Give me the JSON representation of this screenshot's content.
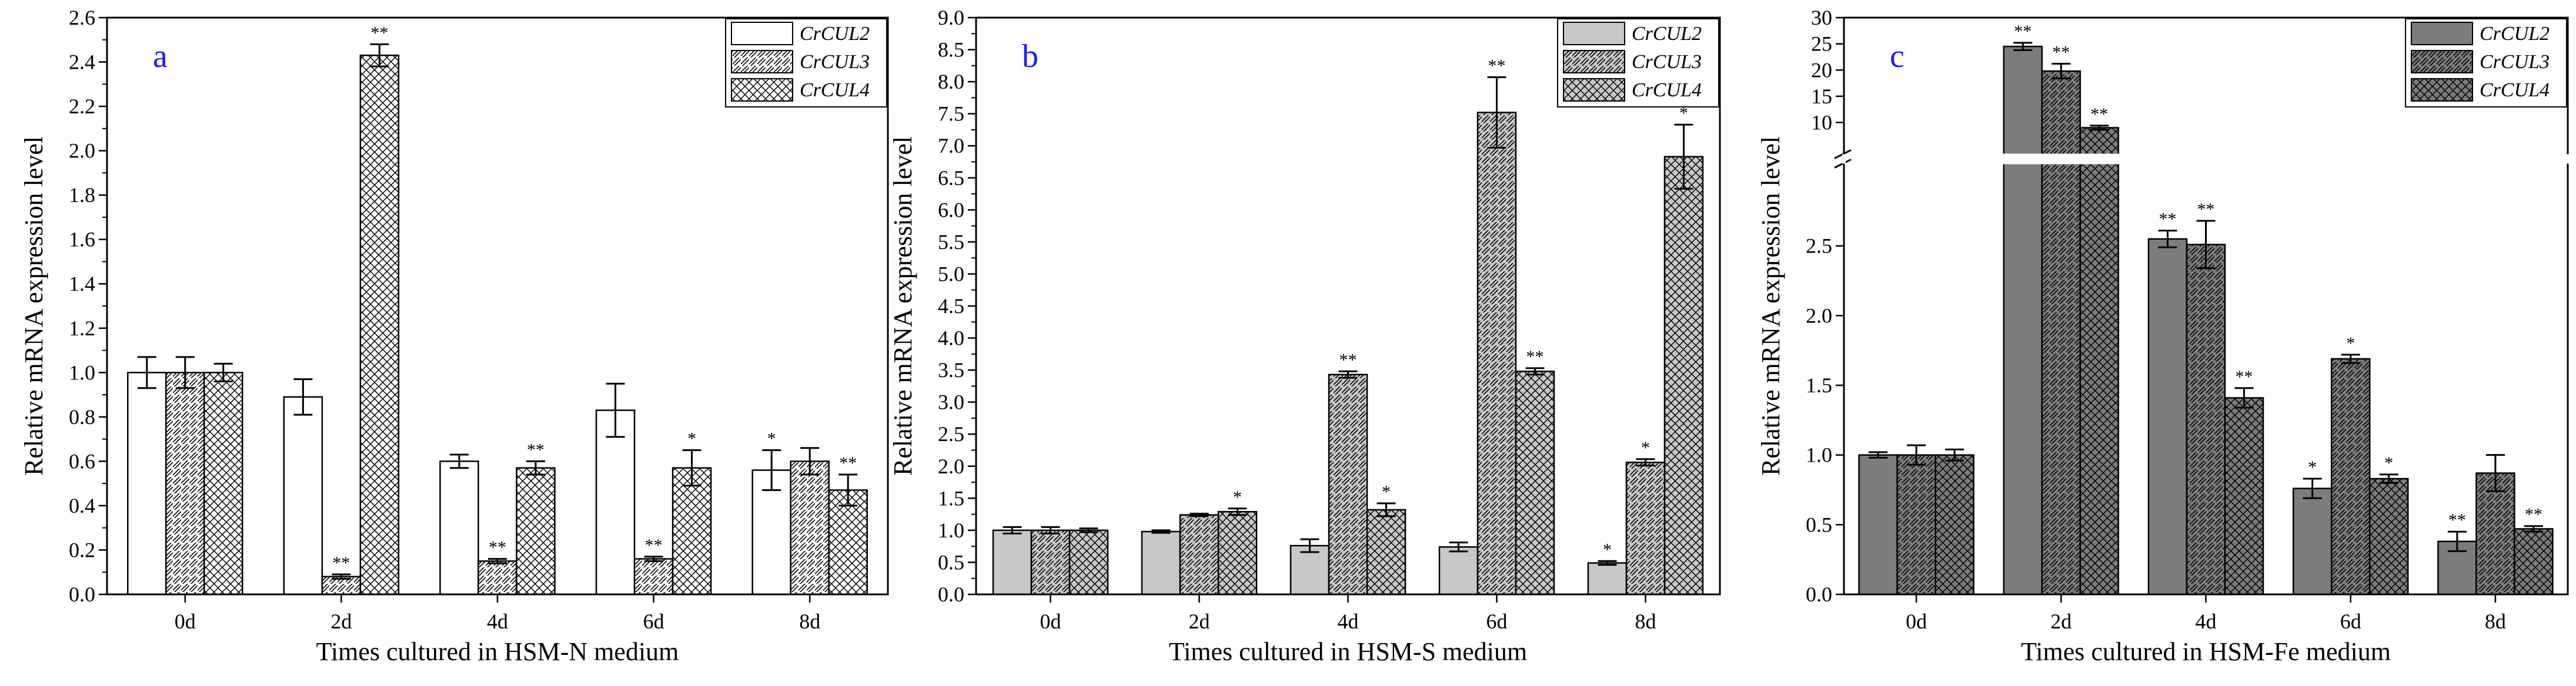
{
  "chart_data": [
    {
      "type": "bar",
      "panel_letter": "a",
      "xlabel": "Times cultured in HSM-N medium",
      "ylabel": "Relative mRNA expression level",
      "categories": [
        "0d",
        "2d",
        "4d",
        "6d",
        "8d"
      ],
      "ylim": [
        0,
        2.6
      ],
      "yticks": [
        "0.0",
        "0.2",
        "0.4",
        "0.6",
        "0.8",
        "1.0",
        "1.2",
        "1.4",
        "1.6",
        "1.8",
        "2.0",
        "2.2",
        "2.4",
        "2.6"
      ],
      "legend_position": "top-right",
      "series": [
        {
          "name": "CrCUL2",
          "values": [
            1.0,
            0.89,
            0.6,
            0.83,
            0.56
          ],
          "errors": [
            0.07,
            0.08,
            0.03,
            0.12,
            0.09
          ],
          "sig": [
            "",
            "",
            "",
            "",
            "*"
          ]
        },
        {
          "name": "CrCUL3",
          "values": [
            1.0,
            0.08,
            0.15,
            0.16,
            0.6
          ],
          "errors": [
            0.07,
            0.01,
            0.01,
            0.01,
            0.06
          ],
          "sig": [
            "",
            "**",
            "**",
            "**",
            ""
          ]
        },
        {
          "name": "CrCUL4",
          "values": [
            1.0,
            2.43,
            0.57,
            0.57,
            0.47
          ],
          "errors": [
            0.04,
            0.05,
            0.03,
            0.08,
            0.07
          ],
          "sig": [
            "",
            "**",
            "**",
            "*",
            "**"
          ]
        }
      ]
    },
    {
      "type": "bar",
      "panel_letter": "b",
      "xlabel": "Times cultured in HSM-S medium",
      "ylabel": "Relative mRNA expression level",
      "categories": [
        "0d",
        "2d",
        "4d",
        "6d",
        "8d"
      ],
      "ylim": [
        0,
        9.0
      ],
      "yticks": [
        "0.0",
        "0.5",
        "1.0",
        "1.5",
        "2.0",
        "2.5",
        "3.0",
        "3.5",
        "4.0",
        "4.5",
        "5.0",
        "5.5",
        "6.0",
        "6.5",
        "7.0",
        "7.5",
        "8.0",
        "8.5",
        "9.0"
      ],
      "legend_position": "top-right",
      "series": [
        {
          "name": "CrCUL2",
          "values": [
            1.0,
            0.98,
            0.76,
            0.74,
            0.49
          ],
          "errors": [
            0.05,
            0.02,
            0.1,
            0.07,
            0.03
          ],
          "sig": [
            "",
            "",
            "",
            "",
            "*"
          ]
        },
        {
          "name": "CrCUL3",
          "values": [
            1.0,
            1.24,
            3.43,
            7.52,
            2.06
          ],
          "errors": [
            0.05,
            0.02,
            0.05,
            0.55,
            0.05
          ],
          "sig": [
            "",
            "",
            "**",
            "**",
            "*"
          ]
        },
        {
          "name": "CrCUL4",
          "values": [
            1.0,
            1.29,
            1.32,
            3.48,
            6.83
          ],
          "errors": [
            0.03,
            0.05,
            0.1,
            0.05,
            0.5
          ],
          "sig": [
            "",
            "*",
            "*",
            "**",
            "*"
          ]
        }
      ]
    },
    {
      "type": "bar",
      "panel_letter": "c",
      "xlabel": "Times cultured in HSM-Fe medium",
      "ylabel": "Relative mRNA expression level",
      "categories": [
        "0d",
        "2d",
        "4d",
        "6d",
        "8d"
      ],
      "axis_break": {
        "lower_ylim": [
          0,
          3.0
        ],
        "upper_ylim": [
          8,
          30
        ]
      },
      "yticks_lower": [
        "0.0",
        "0.5",
        "1.0",
        "1.5",
        "2.0",
        "2.5"
      ],
      "yticks_upper": [
        "10",
        "15",
        "20",
        "25",
        "30"
      ],
      "legend_position": "top-right",
      "series": [
        {
          "name": "CrCUL2",
          "values": [
            1.0,
            24.5,
            2.55,
            0.76,
            0.38
          ],
          "errors": [
            0.02,
            0.7,
            0.06,
            0.07,
            0.07
          ],
          "sig": [
            "",
            "**",
            "**",
            "*",
            "**"
          ]
        },
        {
          "name": "CrCUL3",
          "values": [
            1.0,
            19.8,
            2.51,
            1.69,
            0.87
          ],
          "errors": [
            0.07,
            1.4,
            0.17,
            0.03,
            0.13
          ],
          "sig": [
            "",
            "**",
            "**",
            "*",
            ""
          ]
        },
        {
          "name": "CrCUL4",
          "values": [
            1.0,
            9.0,
            1.41,
            0.83,
            0.47
          ],
          "errors": [
            0.04,
            0.4,
            0.07,
            0.03,
            0.02
          ],
          "sig": [
            "",
            "**",
            "**",
            "*",
            "**"
          ]
        }
      ]
    }
  ]
}
